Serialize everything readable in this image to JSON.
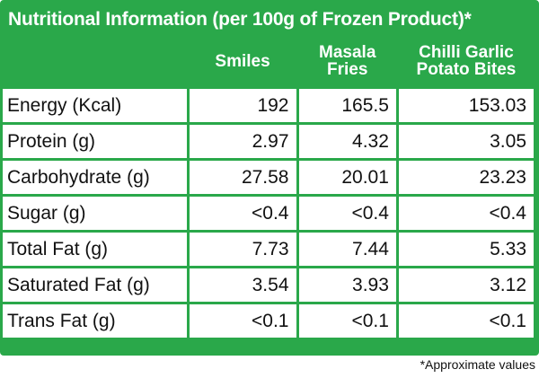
{
  "title": "Nutritional Information (per 100g of Frozen Product)*",
  "columns": [
    {
      "line1": "Smiles",
      "line2": ""
    },
    {
      "line1": "Masala",
      "line2": "Fries"
    },
    {
      "line1": "Chilli Garlic",
      "line2": "Potato Bites"
    }
  ],
  "rows": [
    {
      "label": "Energy (Kcal)",
      "values": [
        "192",
        "165.5",
        "153.03"
      ]
    },
    {
      "label": "Protein (g)",
      "values": [
        "2.97",
        "4.32",
        "3.05"
      ]
    },
    {
      "label": "Carbohydrate (g)",
      "values": [
        "27.58",
        "20.01",
        "23.23"
      ]
    },
    {
      "label": "Sugar (g)",
      "values": [
        "<0.4",
        "<0.4",
        "<0.4"
      ]
    },
    {
      "label": "Total Fat (g)",
      "values": [
        "7.73",
        "7.44",
        "5.33"
      ]
    },
    {
      "label": "Saturated Fat (g)",
      "values": [
        "3.54",
        "3.93",
        "3.12"
      ]
    },
    {
      "label": "Trans Fat (g)",
      "values": [
        "<0.1",
        "<0.1",
        "<0.1"
      ]
    }
  ],
  "footnote": "*Approximate values",
  "colors": {
    "accent": "#2aa84a",
    "text": "#111111",
    "background": "#ffffff"
  }
}
